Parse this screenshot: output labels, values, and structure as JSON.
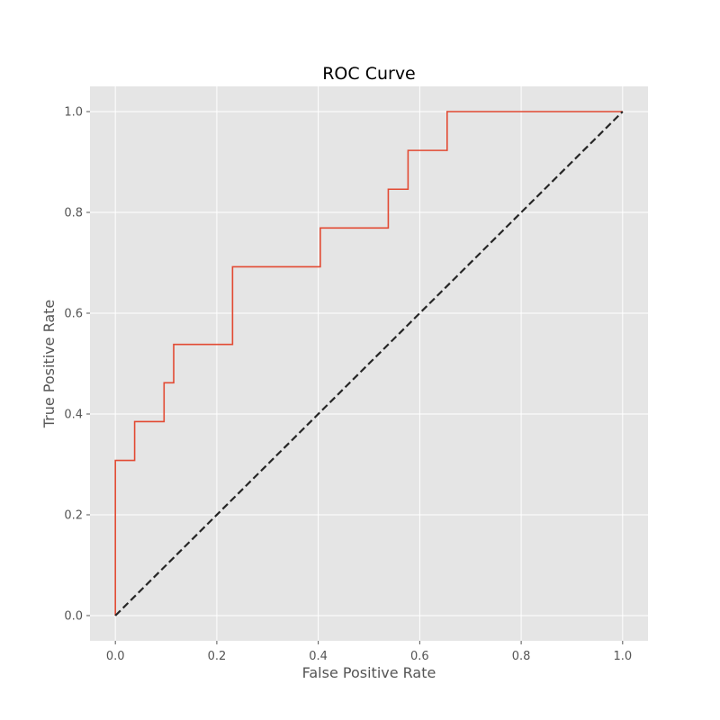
{
  "chart_data": {
    "type": "line",
    "title": "ROC Curve",
    "xlabel": "False Positive Rate",
    "ylabel": "True Positive Rate",
    "xlim": [
      -0.05,
      1.05
    ],
    "ylim": [
      -0.05,
      1.05
    ],
    "x_ticks": [
      "0.0",
      "0.2",
      "0.4",
      "0.6",
      "0.8",
      "1.0"
    ],
    "y_ticks": [
      "0.0",
      "0.2",
      "0.4",
      "0.6",
      "0.8",
      "1.0"
    ],
    "grid": true,
    "legend": "none",
    "series": [
      {
        "style": "solid",
        "color": "#e24a33",
        "x": [
          0.0,
          0.0,
          0.038,
          0.038,
          0.096,
          0.096,
          0.115,
          0.115,
          0.231,
          0.231,
          0.404,
          0.404,
          0.538,
          0.538,
          0.577,
          0.577,
          0.654,
          0.654,
          1.0
        ],
        "y": [
          0.0,
          0.308,
          0.308,
          0.385,
          0.385,
          0.462,
          0.462,
          0.538,
          0.538,
          0.692,
          0.692,
          0.769,
          0.769,
          0.846,
          0.846,
          0.923,
          0.923,
          1.0,
          1.0
        ]
      },
      {
        "style": "dashed",
        "color": "#262626",
        "x": [
          0.0,
          1.0
        ],
        "y": [
          0.0,
          1.0
        ]
      }
    ],
    "colors": {
      "plot_background": "#e5e5e5",
      "grid": "#ffffff",
      "tick_text": "#555555"
    }
  }
}
